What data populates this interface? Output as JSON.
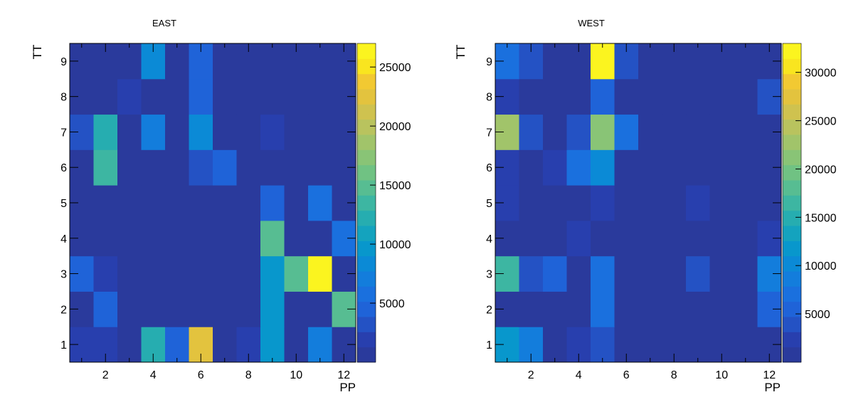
{
  "chart_data": [
    {
      "type": "heatmap",
      "title": "EAST",
      "xlabel": "PP",
      "ylabel": "TT",
      "x_bins": [
        1,
        2,
        3,
        4,
        5,
        6,
        7,
        8,
        9,
        10,
        11,
        12
      ],
      "y_bins": [
        1,
        2,
        3,
        4,
        5,
        6,
        7,
        8,
        9
      ],
      "xlim": [
        0.5,
        12.5
      ],
      "ylim": [
        0.5,
        9.5
      ],
      "x_ticks": [
        2,
        4,
        6,
        8,
        10,
        12
      ],
      "y_ticks": [
        1,
        2,
        3,
        4,
        5,
        6,
        7,
        8,
        9
      ],
      "z_range": [
        0,
        27000
      ],
      "z_ticks": [
        5000,
        10000,
        15000,
        20000,
        25000
      ],
      "values": [
        [
          2500,
          2500,
          0,
          12000,
          4500,
          23000,
          0,
          2500,
          9500,
          0,
          7000,
          0
        ],
        [
          0,
          4000,
          0,
          0,
          0,
          0,
          0,
          0,
          9500,
          0,
          0,
          14500
        ],
        [
          5000,
          2500,
          0,
          0,
          0,
          0,
          0,
          0,
          10000,
          14500,
          27000,
          0
        ],
        [
          0,
          0,
          0,
          0,
          0,
          0,
          0,
          0,
          14500,
          0,
          0,
          6000
        ],
        [
          0,
          0,
          0,
          0,
          0,
          0,
          0,
          0,
          4000,
          0,
          6000,
          0
        ],
        [
          0,
          13000,
          0,
          0,
          0,
          3000,
          4000,
          0,
          0,
          0,
          0,
          0
        ],
        [
          3000,
          12000,
          0,
          7500,
          0,
          8500,
          0,
          0,
          2500,
          0,
          0,
          0
        ],
        [
          0,
          0,
          2500,
          0,
          0,
          4000,
          0,
          0,
          0,
          0,
          0,
          0
        ],
        [
          0,
          0,
          0,
          8000,
          0,
          4500,
          0,
          0,
          0,
          0,
          0,
          0
        ]
      ]
    },
    {
      "type": "heatmap",
      "title": "WEST",
      "xlabel": "PP",
      "ylabel": "TT",
      "x_bins": [
        1,
        2,
        3,
        4,
        5,
        6,
        7,
        8,
        9,
        10,
        11,
        12
      ],
      "y_bins": [
        1,
        2,
        3,
        4,
        5,
        6,
        7,
        8,
        9
      ],
      "xlim": [
        0.5,
        12.5
      ],
      "ylim": [
        0.5,
        9.5
      ],
      "x_ticks": [
        2,
        4,
        6,
        8,
        10,
        12
      ],
      "y_ticks": [
        1,
        2,
        3,
        4,
        5,
        6,
        7,
        8,
        9
      ],
      "z_range": [
        0,
        33000
      ],
      "z_ticks": [
        5000,
        10000,
        15000,
        20000,
        25000,
        30000
      ],
      "values": [
        [
          11500,
          8000,
          0,
          2500,
          4500,
          0,
          0,
          0,
          0,
          0,
          0,
          0
        ],
        [
          0,
          0,
          0,
          0,
          7500,
          0,
          0,
          0,
          0,
          0,
          0,
          5000
        ],
        [
          17000,
          3500,
          5000,
          0,
          7500,
          0,
          0,
          0,
          4500,
          0,
          0,
          8500
        ],
        [
          0,
          0,
          0,
          2500,
          0,
          0,
          0,
          0,
          0,
          0,
          0,
          2500
        ],
        [
          2000,
          0,
          0,
          0,
          2500,
          0,
          0,
          0,
          3000,
          0,
          0,
          0
        ],
        [
          2000,
          0,
          2500,
          7500,
          10000,
          0,
          0,
          0,
          0,
          0,
          0,
          0
        ],
        [
          22500,
          3500,
          0,
          4500,
          20500,
          6500,
          0,
          0,
          0,
          0,
          0,
          0
        ],
        [
          2000,
          0,
          0,
          0,
          6000,
          0,
          0,
          0,
          0,
          0,
          0,
          4000
        ],
        [
          6500,
          4500,
          0,
          0,
          33000,
          4000,
          0,
          0,
          0,
          0,
          0,
          0
        ]
      ]
    }
  ]
}
